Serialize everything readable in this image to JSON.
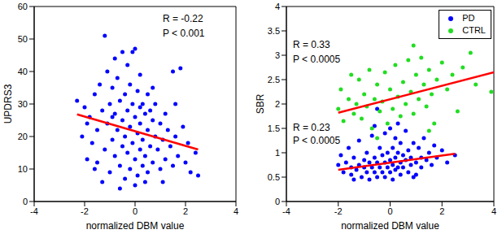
{
  "chart_data": [
    {
      "type": "scatter",
      "xlabel": "normalized DBM value",
      "ylabel": "UPDRS3",
      "xlim": [
        -4,
        4
      ],
      "xticks": [
        -4,
        -2,
        0,
        2,
        4
      ],
      "ylim": [
        0,
        60
      ],
      "yticks": [
        0,
        10,
        20,
        30,
        40,
        50,
        60
      ],
      "annotations": [
        "R = -0.22",
        "P < 0.001"
      ],
      "series": [
        {
          "color": "#0000ff",
          "marker": "o",
          "x": [
            -2.3,
            -2.1,
            -2.0,
            -1.9,
            -1.8,
            -1.7,
            -1.6,
            -1.5,
            -1.5,
            -1.4,
            -1.3,
            -1.2,
            -1.2,
            -1.1,
            -1.1,
            -1.0,
            -1.0,
            -0.9,
            -0.9,
            -0.8,
            -0.8,
            -0.8,
            -0.7,
            -0.7,
            -0.6,
            -0.6,
            -0.5,
            -0.5,
            -0.5,
            -0.4,
            -0.4,
            -0.4,
            -0.3,
            -0.3,
            -0.3,
            -0.2,
            -0.2,
            -0.2,
            -0.1,
            -0.1,
            -0.1,
            0,
            0,
            0,
            0,
            0.1,
            0.1,
            0.1,
            0.2,
            0.2,
            0.2,
            0.3,
            0.3,
            0.3,
            0.4,
            0.4,
            0.5,
            0.5,
            0.5,
            0.6,
            0.6,
            0.7,
            0.7,
            0.8,
            0.8,
            0.9,
            1.0,
            1.0,
            1.1,
            1.2,
            1.2,
            1.3,
            1.4,
            1.5,
            1.5,
            1.6,
            1.7,
            1.8,
            1.9,
            2.0,
            2.1,
            2.2,
            2.4,
            2.5,
            -1.6,
            -1.3,
            -0.6,
            0.4,
            1.1,
            -1.9,
            -0.9,
            0.2,
            0.7,
            1.6
          ],
          "values": [
            31,
            20,
            29,
            13,
            26,
            18,
            33,
            22,
            12,
            36,
            28,
            51,
            16,
            40,
            24,
            30,
            9,
            35,
            19,
            44,
            27,
            14,
            38,
            22,
            31,
            11,
            46,
            25,
            17,
            33,
            20,
            7,
            42,
            28,
            15,
            36,
            23,
            10,
            46,
            30,
            18,
            47,
            26,
            13,
            5,
            34,
            21,
            8,
            39,
            24,
            16,
            30,
            19,
            11,
            27,
            14,
            33,
            22,
            9,
            28,
            17,
            25,
            12,
            30,
            20,
            16,
            24,
            10,
            19,
            27,
            13,
            22,
            17,
            40,
            11,
            20,
            14,
            41,
            23,
            12,
            18,
            9,
            15,
            8,
            10,
            6,
            4,
            6,
            6,
            24,
            26,
            29,
            35,
            30
          ]
        },
        {
          "type": "line",
          "color": "#ff0000",
          "line_style": "solid",
          "x": [
            -2.3,
            2.5
          ],
          "values": [
            26.8,
            16.0
          ]
        }
      ]
    },
    {
      "type": "scatter",
      "xlabel": "normalized DBM value",
      "ylabel": "SBR",
      "xlim": [
        -4,
        4
      ],
      "xticks": [
        -4,
        -2,
        0,
        2,
        4
      ],
      "ylim": [
        0,
        4
      ],
      "yticks": [
        0,
        0.5,
        1,
        1.5,
        2,
        2.5,
        3,
        3.5,
        4
      ],
      "legend": "upper right",
      "annotations": [
        "R = 0.33",
        "P < 0.0005",
        "R = 0.23",
        "P < 0.0005"
      ],
      "series": [
        {
          "name": "PD",
          "color": "#0000ff",
          "marker": "o",
          "x": [
            -2.0,
            -1.9,
            -1.8,
            -1.7,
            -1.6,
            -1.5,
            -1.5,
            -1.4,
            -1.3,
            -1.2,
            -1.2,
            -1.1,
            -1.0,
            -1.0,
            -0.9,
            -0.9,
            -0.8,
            -0.8,
            -0.7,
            -0.7,
            -0.6,
            -0.6,
            -0.5,
            -0.5,
            -0.5,
            -0.4,
            -0.4,
            -0.3,
            -0.3,
            -0.2,
            -0.2,
            -0.2,
            -0.1,
            -0.1,
            0,
            0,
            0,
            0.1,
            0.1,
            0.1,
            0.2,
            0.2,
            0.2,
            0.3,
            0.3,
            0.4,
            0.4,
            0.4,
            0.5,
            0.5,
            0.6,
            0.6,
            0.7,
            0.7,
            0.8,
            0.8,
            0.9,
            1.0,
            1.0,
            1.1,
            1.2,
            1.2,
            1.3,
            1.4,
            1.5,
            1.6,
            1.7,
            1.8,
            2.0,
            2.2,
            2.5,
            -0.6,
            0.3,
            -1.4,
            0.9
          ],
          "values": [
            0.75,
            0.95,
            0.6,
            0.8,
            1.1,
            0.7,
            0.55,
            0.9,
            0.65,
            1.25,
            0.75,
            0.5,
            0.85,
            0.7,
            1.0,
            0.6,
            0.8,
            0.45,
            1.35,
            0.7,
            0.9,
            0.6,
            1.9,
            0.8,
            0.5,
            1.1,
            0.7,
            0.95,
            0.6,
            1.4,
            0.8,
            0.5,
            1.0,
            0.7,
            1.5,
            0.85,
            0.6,
            1.1,
            0.75,
            0.45,
            1.3,
            0.9,
            0.65,
            1.0,
            0.7,
            1.2,
            0.8,
            0.55,
            0.95,
            0.7,
            1.45,
            0.85,
            1.05,
            0.6,
            0.9,
            0.75,
            1.2,
            0.8,
            0.55,
            1.1,
            0.9,
            0.7,
            1.3,
            0.85,
            1.0,
            0.75,
            1.15,
            0.9,
            1.05,
            0.8,
            0.95,
            1.55,
            1.6,
            0.45,
            0.5
          ]
        },
        {
          "name": "CTRL",
          "color": "#22dd22",
          "marker": "o",
          "x": [
            -2.0,
            -1.9,
            -1.8,
            -1.6,
            -1.5,
            -1.4,
            -1.3,
            -1.2,
            -1.1,
            -1.0,
            -0.9,
            -0.8,
            -0.7,
            -0.6,
            -0.5,
            -0.4,
            -0.3,
            -0.2,
            -0.1,
            0,
            0.1,
            0.2,
            0.3,
            0.4,
            0.5,
            0.6,
            0.7,
            0.8,
            0.9,
            1.0,
            1.1,
            1.2,
            1.3,
            1.4,
            1.5,
            1.6,
            1.7,
            1.8,
            2.0,
            2.2,
            2.4,
            2.6,
            2.8,
            3.1,
            3.3,
            3.9,
            -0.5,
            0.9,
            1.5
          ],
          "values": [
            1.9,
            2.3,
            1.65,
            2.1,
            2.6,
            1.8,
            2.0,
            2.5,
            1.7,
            2.2,
            1.95,
            2.7,
            1.5,
            2.1,
            2.4,
            1.85,
            2.05,
            2.65,
            1.6,
            2.3,
            1.9,
            2.8,
            2.15,
            1.75,
            2.45,
            2.0,
            2.9,
            2.25,
            1.8,
            2.6,
            2.1,
            2.95,
            2.4,
            1.95,
            2.7,
            2.2,
            1.6,
            2.5,
            2.85,
            2.3,
            2.6,
            1.85,
            2.75,
            3.05,
            2.4,
            2.25,
            1.3,
            3.2,
            1.45
          ]
        },
        {
          "type": "line",
          "color": "#ff0000",
          "line_style": "solid",
          "x": [
            -2.0,
            2.5
          ],
          "values": [
            0.65,
            0.98
          ]
        },
        {
          "type": "line",
          "color": "#ff0000",
          "line_style": "solid",
          "x": [
            -2.0,
            4.0
          ],
          "values": [
            1.82,
            2.65
          ]
        }
      ]
    }
  ]
}
